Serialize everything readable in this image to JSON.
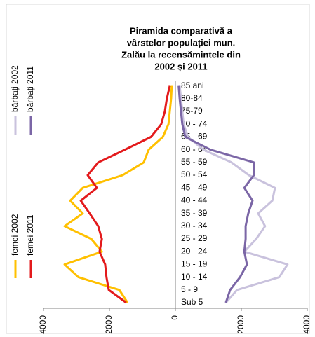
{
  "chart_data": {
    "type": "line",
    "title": [
      "Piramida comparativă a",
      "vârstelor populației mun.",
      "Zalău la recensămintele din",
      "2002  și 2011"
    ],
    "categories": [
      "Sub 5",
      "5 - 9",
      "10 - 14",
      "15 - 19",
      "20 - 24",
      "25 - 29",
      "30 - 34",
      "35 - 39",
      "40 - 44",
      "45 - 49",
      "50 - 54",
      "55 - 59",
      "60 - 64",
      "65 - 69",
      "70 - 74",
      "75-79",
      "80-84",
      "85 ani"
    ],
    "series": [
      {
        "name": "bărbați  2002",
        "color": "#c9c2dd",
        "values": [
          1530,
          1870,
          3150,
          3400,
          2090,
          2450,
          2720,
          2510,
          2940,
          3020,
          2230,
          1700,
          850,
          380,
          250,
          210,
          170,
          130
        ]
      },
      {
        "name": "bărbați  2011",
        "color": "#7b66a6",
        "values": [
          1530,
          1660,
          1960,
          2170,
          2090,
          2130,
          2130,
          2210,
          2340,
          2090,
          2380,
          2380,
          1060,
          300,
          210,
          170,
          130,
          100
        ]
      },
      {
        "name": "femei 2002",
        "color": "#ffc000",
        "values": [
          -1450,
          -1700,
          -2940,
          -3360,
          -2230,
          -2550,
          -3360,
          -2810,
          -3190,
          -2810,
          -1600,
          -960,
          -810,
          -380,
          -210,
          -170,
          -130,
          -110
        ]
      },
      {
        "name": "femei 2011",
        "color": "#e31a1c",
        "values": [
          -1490,
          -2020,
          -2090,
          -2130,
          -2300,
          -2230,
          -2340,
          -2600,
          -2870,
          -2380,
          -2660,
          -2340,
          -1530,
          -740,
          -430,
          -320,
          -260,
          -170
        ]
      }
    ],
    "xlim": [
      -4000,
      4000
    ],
    "xticks": [
      {
        "value": -4000,
        "label": "4000"
      },
      {
        "value": -2000,
        "label": "2000"
      },
      0,
      2000,
      4000
    ]
  }
}
